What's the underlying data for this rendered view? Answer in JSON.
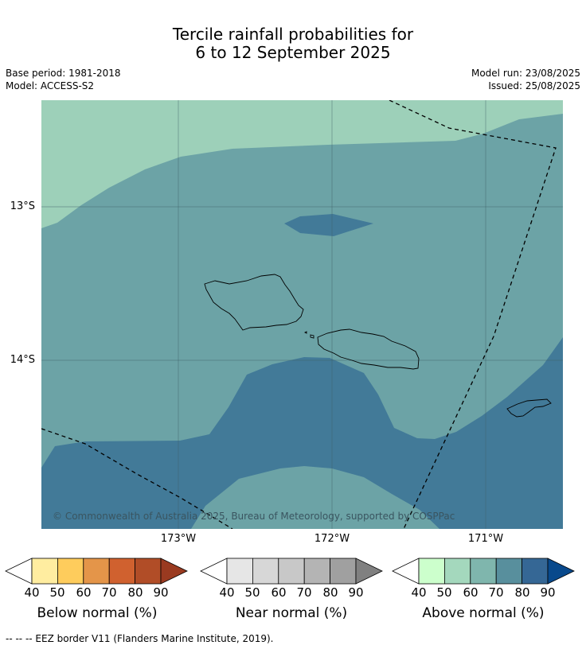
{
  "title_line1": "Tercile rainfall probabilities for",
  "title_line2": "6 to 12 September 2025",
  "base_period": "Base period: 1981-2018",
  "model": "Model: ACCESS-S2",
  "model_run": "Model run: 23/08/2025",
  "issued": "Issued: 25/08/2025",
  "lat_labels": [
    "13°S",
    "14°S"
  ],
  "lon_labels": [
    "173°W",
    "172°W",
    "171°W"
  ],
  "copyright": "© Commonwealth of Australia 2025, Bureau of Meteorology, supported by COSPPac",
  "footnote": "--  --  -- EEZ border V11 (Flanders Marine Institute, 2019).",
  "colors": {
    "map_above_50": "#9dd0b9",
    "map_above_60": "#6ca3a6",
    "map_above_70": "#427a98"
  },
  "colorbars": [
    {
      "title": "Below normal (%)",
      "ticks": [
        "40",
        "50",
        "60",
        "70",
        "80",
        "90"
      ],
      "colors": [
        "#ffffff",
        "#ffeda0",
        "#fecc5c",
        "#e49549",
        "#d0612f",
        "#b14d27",
        "#9a3a20"
      ]
    },
    {
      "title": "Near normal (%)",
      "ticks": [
        "40",
        "50",
        "60",
        "70",
        "80",
        "90"
      ],
      "colors": [
        "#ffffff",
        "#e6e6e6",
        "#d7d7d7",
        "#c8c8c8",
        "#b4b4b4",
        "#a0a0a0",
        "#808080"
      ]
    },
    {
      "title": "Above normal (%)",
      "ticks": [
        "40",
        "50",
        "60",
        "70",
        "80",
        "90"
      ],
      "colors": [
        "#ffffff",
        "#ccffcc",
        "#a4d8bd",
        "#7fb6ad",
        "#588f9d",
        "#356795",
        "#08498c"
      ]
    }
  ]
}
